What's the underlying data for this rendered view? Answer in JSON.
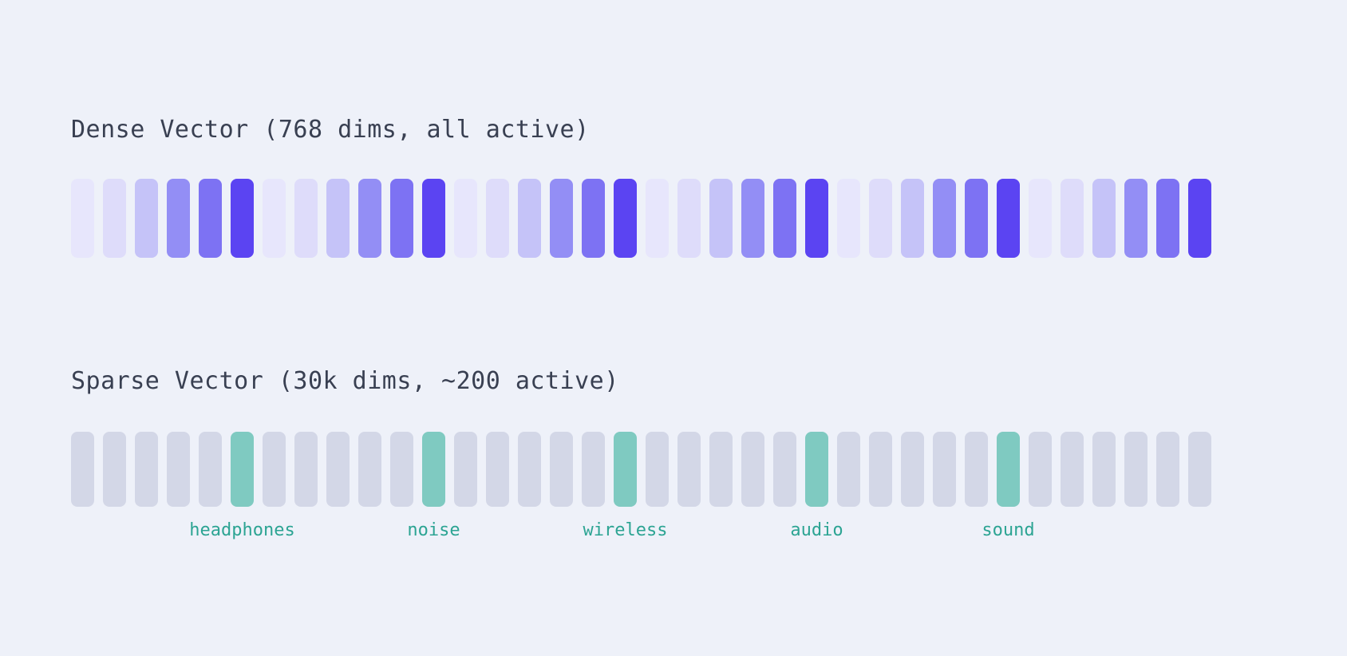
{
  "background_color": "#eef1f9",
  "title_color": "#394052",
  "dense": {
    "title": "Dense Vector (768 dims, all active)",
    "dims_note": "768 dims, all active",
    "shade_palette": [
      "#e7e6fc",
      "#dedcfa",
      "#c5c3f8",
      "#938ef5",
      "#7d72f3",
      "#5b44f2"
    ],
    "cells": [
      0,
      1,
      2,
      3,
      4,
      5,
      0,
      1,
      2,
      3,
      4,
      5,
      0,
      1,
      2,
      3,
      4,
      5,
      0,
      1,
      2,
      3,
      4,
      5,
      0,
      1,
      2,
      3,
      4,
      5,
      0,
      1,
      2,
      3,
      4,
      5
    ]
  },
  "sparse": {
    "title": "Sparse Vector (30k dims, ~200 active)",
    "dims_note": "30k dims, ~200 active",
    "inactive_color": "#d3d7e7",
    "active_color": "#7fcac1",
    "label_color": "#2ca493",
    "cells": [
      0,
      0,
      0,
      0,
      0,
      1,
      0,
      0,
      0,
      0,
      0,
      1,
      0,
      0,
      0,
      0,
      0,
      1,
      0,
      0,
      0,
      0,
      0,
      1,
      0,
      0,
      0,
      0,
      0,
      1,
      0,
      0,
      0,
      0,
      0,
      0
    ],
    "active_labels": [
      {
        "cell": 6,
        "label": "headphones"
      },
      {
        "cell": 12,
        "label": "noise"
      },
      {
        "cell": 18,
        "label": "wireless"
      },
      {
        "cell": 24,
        "label": "audio"
      },
      {
        "cell": 30,
        "label": "sound"
      }
    ]
  }
}
